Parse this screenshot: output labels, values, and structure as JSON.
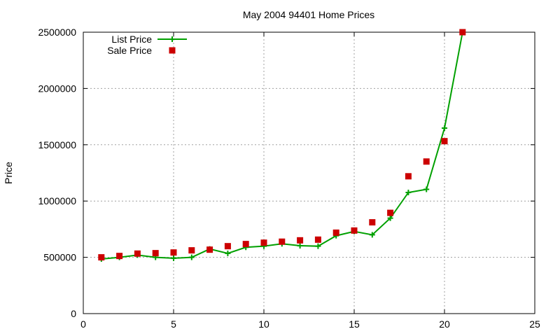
{
  "chart_data": {
    "type": "line",
    "title": "May 2004 94401 Home Prices",
    "xlabel": "",
    "ylabel": "Price",
    "xlim": [
      0,
      25
    ],
    "ylim": [
      0,
      2500000
    ],
    "x_ticks": [
      0,
      5,
      10,
      15,
      20,
      25
    ],
    "y_ticks": [
      0,
      500000,
      1000000,
      1500000,
      2000000,
      2500000
    ],
    "x_tick_labels": [
      "0",
      "5",
      "10",
      "15",
      "20",
      "25"
    ],
    "y_tick_labels": [
      "0",
      "500000",
      "1000000",
      "1500000",
      "2000000",
      "2500000"
    ],
    "grid": true,
    "legend_position": "top-left",
    "x": [
      1,
      2,
      3,
      4,
      5,
      6,
      7,
      8,
      9,
      10,
      11,
      12,
      13,
      14,
      15,
      16,
      17,
      18,
      19,
      20,
      21
    ],
    "series": [
      {
        "name": "List Price",
        "style": "linespoints",
        "marker": "plus",
        "color": "#00a000",
        "values": [
          485000,
          500000,
          520000,
          500000,
          492000,
          500000,
          574000,
          535000,
          589000,
          599000,
          620000,
          603000,
          599000,
          692000,
          730000,
          700000,
          848000,
          1076000,
          1104000,
          1648000,
          2500000
        ]
      },
      {
        "name": "Sale Price",
        "style": "points",
        "marker": "square",
        "color": "#cc0000",
        "values": [
          500000,
          512000,
          533000,
          537000,
          543000,
          562000,
          568000,
          599000,
          618000,
          630000,
          639000,
          651000,
          657000,
          719000,
          738000,
          811000,
          895000,
          1220000,
          1351000,
          1532000,
          2500000
        ]
      }
    ]
  }
}
